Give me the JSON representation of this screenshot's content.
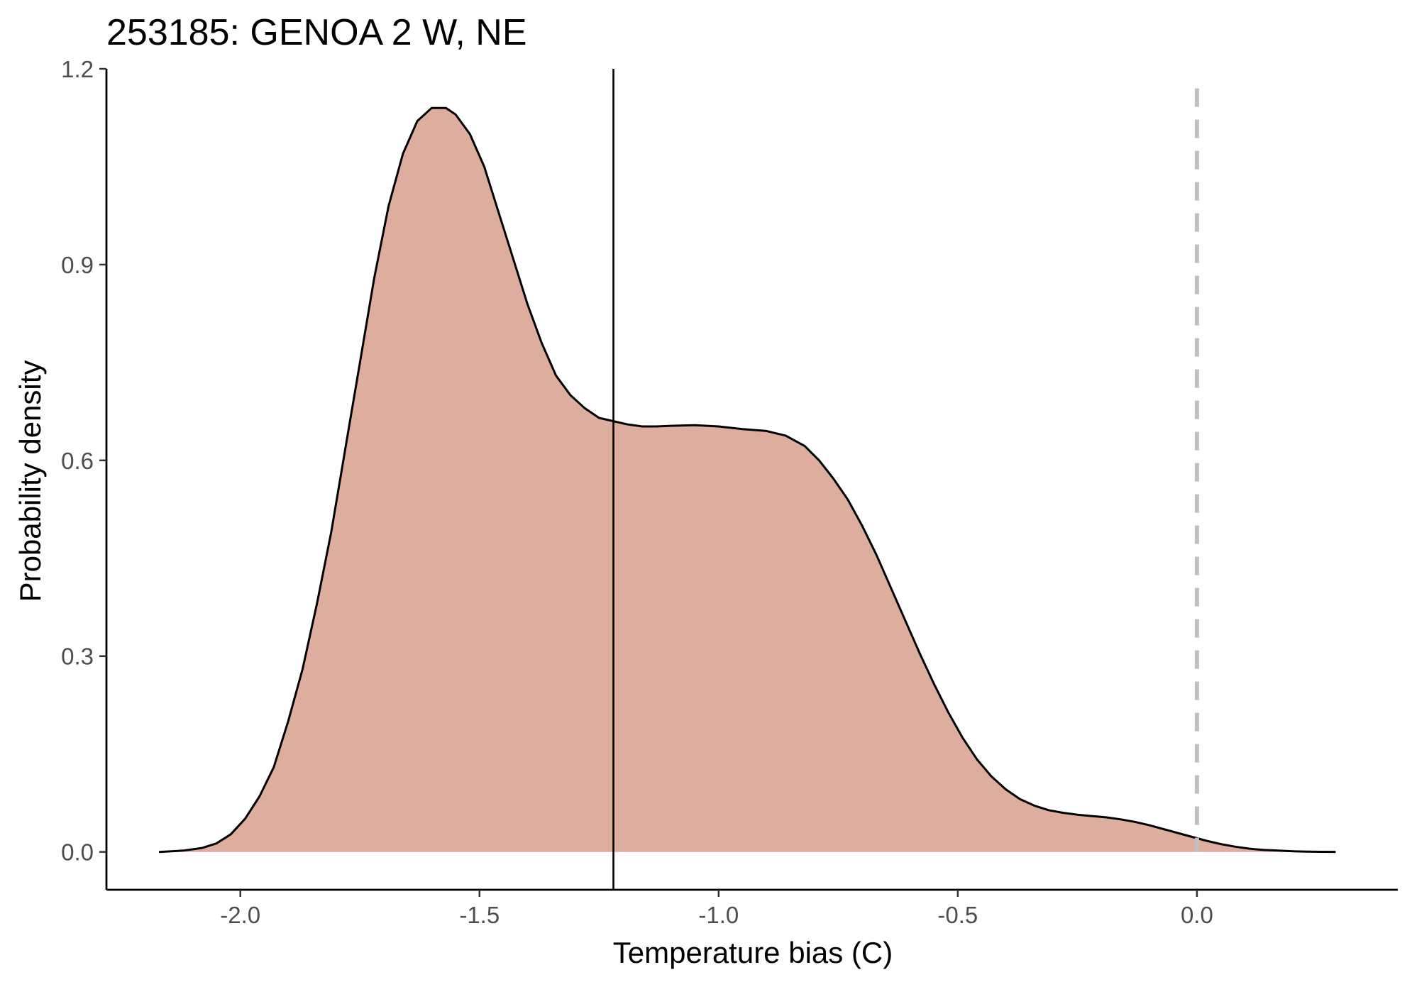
{
  "chart_data": {
    "type": "area",
    "title": "253185: GENOA 2 W, NE",
    "xlabel": "Temperature bias (C)",
    "ylabel": "Probability density",
    "xlim": [
      -2.28,
      0.42
    ],
    "ylim": [
      -0.058,
      1.2
    ],
    "x_ticks": [
      -2.0,
      -1.5,
      -1.0,
      -0.5,
      0.0
    ],
    "x_tick_labels": [
      "-2.0",
      "-1.5",
      "-1.0",
      "-0.5",
      "0.0"
    ],
    "y_ticks": [
      0.0,
      0.3,
      0.6,
      0.9,
      1.2
    ],
    "y_tick_labels": [
      "0.0",
      "0.3",
      "0.6",
      "0.9",
      "1.2"
    ],
    "grid": false,
    "fill_color": "#ddae9e",
    "line_color": "#000000",
    "reference_line_color": "#c0c0c0",
    "series": [
      {
        "x": [
          -2.17,
          -2.12,
          -2.08,
          -2.05,
          -2.02,
          -1.99,
          -1.96,
          -1.93,
          -1.9,
          -1.87,
          -1.84,
          -1.81,
          -1.78,
          -1.75,
          -1.72,
          -1.69,
          -1.66,
          -1.63,
          -1.6,
          -1.57,
          -1.55,
          -1.52,
          -1.49,
          -1.46,
          -1.43,
          -1.4,
          -1.37,
          -1.34,
          -1.31,
          -1.28,
          -1.25,
          -1.22,
          -1.19,
          -1.16,
          -1.13,
          -1.1,
          -1.05,
          -1.0,
          -0.95,
          -0.9,
          -0.86,
          -0.82,
          -0.79,
          -0.76,
          -0.73,
          -0.7,
          -0.67,
          -0.64,
          -0.61,
          -0.58,
          -0.55,
          -0.52,
          -0.49,
          -0.46,
          -0.43,
          -0.4,
          -0.37,
          -0.34,
          -0.31,
          -0.28,
          -0.25,
          -0.22,
          -0.19,
          -0.16,
          -0.13,
          -0.1,
          -0.07,
          -0.04,
          -0.01,
          0.02,
          0.05,
          0.08,
          0.11,
          0.14,
          0.17,
          0.2,
          0.23,
          0.26,
          0.29
        ],
        "y": [
          0.0,
          0.002,
          0.006,
          0.013,
          0.027,
          0.051,
          0.085,
          0.13,
          0.2,
          0.28,
          0.38,
          0.49,
          0.62,
          0.75,
          0.88,
          0.99,
          1.07,
          1.12,
          1.14,
          1.14,
          1.13,
          1.1,
          1.05,
          0.98,
          0.91,
          0.84,
          0.78,
          0.73,
          0.7,
          0.68,
          0.665,
          0.66,
          0.655,
          0.652,
          0.652,
          0.653,
          0.654,
          0.652,
          0.648,
          0.645,
          0.638,
          0.622,
          0.6,
          0.572,
          0.54,
          0.5,
          0.455,
          0.405,
          0.355,
          0.305,
          0.258,
          0.214,
          0.175,
          0.142,
          0.116,
          0.096,
          0.081,
          0.071,
          0.064,
          0.06,
          0.057,
          0.055,
          0.053,
          0.05,
          0.046,
          0.041,
          0.035,
          0.029,
          0.023,
          0.017,
          0.012,
          0.008,
          0.005,
          0.003,
          0.002,
          0.001,
          0.0005,
          0.0002,
          0.0001
        ]
      }
    ],
    "reference_lines": [
      {
        "x": -1.22,
        "style": "solid"
      },
      {
        "x": 0.0,
        "style": "dashed"
      }
    ]
  }
}
